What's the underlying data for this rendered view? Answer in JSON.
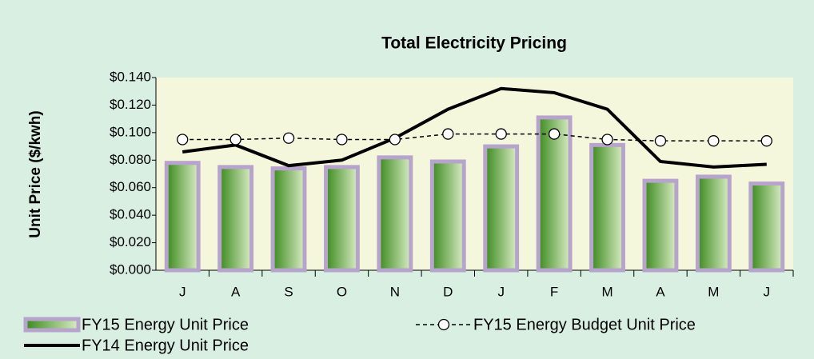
{
  "chart_data": {
    "type": "bar_line",
    "title": "Total Electricity Pricing",
    "y_label": "Unit Price ($/kwh)",
    "categories": [
      "J",
      "A",
      "S",
      "O",
      "N",
      "D",
      "J",
      "F",
      "M",
      "A",
      "M",
      "J"
    ],
    "series": [
      {
        "name": "FY15 Energy Unit Price",
        "type": "bar",
        "color": "#4f9a2a",
        "values": [
          0.078,
          0.075,
          0.074,
          0.075,
          0.082,
          0.079,
          0.09,
          0.111,
          0.091,
          0.065,
          0.068,
          0.063
        ]
      },
      {
        "name": "FY14 Energy Unit Price",
        "type": "line",
        "color": "#000000",
        "values": [
          0.086,
          0.091,
          0.076,
          0.08,
          0.096,
          0.117,
          0.132,
          0.129,
          0.117,
          0.079,
          0.075,
          0.077
        ]
      },
      {
        "name": "FY15 Energy Budget Unit Price",
        "type": "line",
        "dashed": true,
        "color": "#000000",
        "values": [
          0.095,
          0.095,
          0.096,
          0.095,
          0.095,
          0.099,
          0.099,
          0.099,
          0.095,
          0.094,
          0.094,
          0.094
        ]
      }
    ],
    "ylim": [
      0,
      0.14
    ],
    "yticks": [
      {
        "value": 0,
        "label": "$0.000"
      },
      {
        "value": 0.02,
        "label": "$0.020"
      },
      {
        "value": 0.04,
        "label": "$0.040"
      },
      {
        "value": 0.06,
        "label": "$0.060"
      },
      {
        "value": 0.08,
        "label": "$0.080"
      },
      {
        "value": 0.1,
        "label": "$0.100"
      },
      {
        "value": 0.12,
        "label": "$0.120"
      },
      {
        "value": 0.14,
        "label": "$0.140"
      }
    ]
  }
}
